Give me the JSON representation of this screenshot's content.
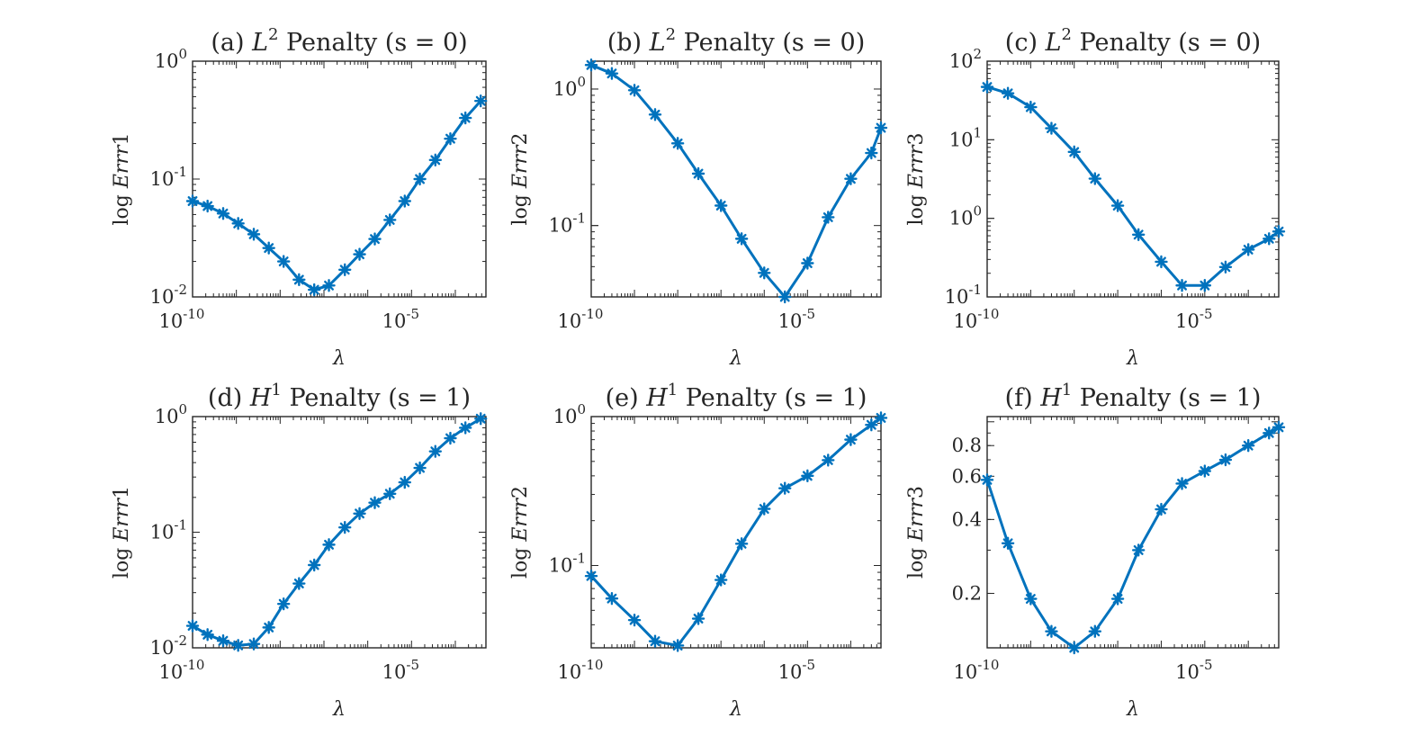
{
  "colors": {
    "series": "#0072BD",
    "axes": "#262626",
    "background": "#ffffff"
  },
  "chart_data": [
    {
      "type": "line",
      "marker": "asterisk",
      "yscale": "log",
      "grid": false,
      "title_prefix": "(a)",
      "title_sym": "L",
      "title_sup": "2",
      "title_rest": "Penalty",
      "title_param": "(s = 0)",
      "xlabel": "λ",
      "ylabel_prefix": "log",
      "ylabel_var": "Err",
      "ylabel_idx": "1",
      "xlim": [
        1e-10,
        0.0005
      ],
      "ylim": [
        0.01,
        1
      ],
      "xticks": [
        {
          "value": 1e-10,
          "label": "10",
          "sup": "-10"
        },
        {
          "value": 1e-05,
          "label": "10",
          "sup": "-5"
        }
      ],
      "yticks": [
        {
          "value": 0.01,
          "label": "10",
          "sup": "-2"
        },
        {
          "value": 0.1,
          "label": "10",
          "sup": "-1"
        },
        {
          "value": 1,
          "label": "10",
          "sup": "0"
        }
      ],
      "x": [
        1e-10,
        2.2e-10,
        5e-10,
        1.1e-09,
        2.5e-09,
        5.5e-09,
        1.2e-08,
        2.7e-08,
        6e-08,
        1.3e-07,
        3e-07,
        6.5e-07,
        1.45e-06,
        3.2e-06,
        7e-06,
        1.55e-05,
        3.5e-05,
        7.7e-05,
        0.00017,
        0.00038
      ],
      "y": [
        0.065,
        0.059,
        0.051,
        0.042,
        0.034,
        0.026,
        0.02,
        0.014,
        0.0115,
        0.0125,
        0.017,
        0.023,
        0.031,
        0.045,
        0.065,
        0.1,
        0.145,
        0.22,
        0.33,
        0.46
      ]
    },
    {
      "type": "line",
      "marker": "asterisk",
      "yscale": "log",
      "grid": false,
      "title_prefix": "(b)",
      "title_sym": "L",
      "title_sup": "2",
      "title_rest": "Penalty",
      "title_param": "(s = 0)",
      "xlabel": "λ",
      "ylabel_prefix": "log",
      "ylabel_var": "Err",
      "ylabel_idx": "2",
      "xlim": [
        1e-10,
        0.0005
      ],
      "ylim": [
        0.03,
        1.6
      ],
      "xticks": [
        {
          "value": 1e-10,
          "label": "10",
          "sup": "-10"
        },
        {
          "value": 1e-05,
          "label": "10",
          "sup": "-5"
        }
      ],
      "yticks": [
        {
          "value": 0.1,
          "label": "10",
          "sup": "-1"
        },
        {
          "value": 1,
          "label": "10",
          "sup": "0"
        }
      ],
      "x": [
        1e-10,
        3e-10,
        1e-09,
        3e-09,
        1e-08,
        3e-08,
        1e-07,
        3e-07,
        1e-06,
        3e-06,
        1e-05,
        3e-05,
        0.0001,
        0.0003,
        0.0005
      ],
      "y": [
        1.5,
        1.3,
        0.98,
        0.65,
        0.4,
        0.24,
        0.14,
        0.08,
        0.045,
        0.03,
        0.053,
        0.115,
        0.22,
        0.34,
        0.52
      ]
    },
    {
      "type": "line",
      "marker": "asterisk",
      "yscale": "log",
      "grid": false,
      "title_prefix": "(c)",
      "title_sym": "L",
      "title_sup": "2",
      "title_rest": "Penalty",
      "title_param": "(s = 0)",
      "xlabel": "λ",
      "ylabel_prefix": "log",
      "ylabel_var": "Err",
      "ylabel_idx": "3",
      "xlim": [
        1e-10,
        0.0005
      ],
      "ylim": [
        0.1,
        100
      ],
      "xticks": [
        {
          "value": 1e-10,
          "label": "10",
          "sup": "-10"
        },
        {
          "value": 1e-05,
          "label": "10",
          "sup": "-5"
        }
      ],
      "yticks": [
        {
          "value": 0.1,
          "label": "10",
          "sup": "-1"
        },
        {
          "value": 1,
          "label": "10",
          "sup": "0"
        },
        {
          "value": 10,
          "label": "10",
          "sup": "1"
        },
        {
          "value": 100,
          "label": "10",
          "sup": "2"
        }
      ],
      "x": [
        1e-10,
        3e-10,
        1e-09,
        3e-09,
        1e-08,
        3e-08,
        1e-07,
        3e-07,
        1e-06,
        3e-06,
        1e-05,
        3e-05,
        0.0001,
        0.0003,
        0.0005
      ],
      "y": [
        47,
        39,
        26,
        14,
        7,
        3.2,
        1.45,
        0.62,
        0.28,
        0.14,
        0.14,
        0.24,
        0.4,
        0.55,
        0.68
      ]
    },
    {
      "type": "line",
      "marker": "asterisk",
      "yscale": "log",
      "grid": false,
      "title_prefix": "(d)",
      "title_sym": "H",
      "title_sup": "1",
      "title_rest": "Penalty",
      "title_param": "(s = 1)",
      "xlabel": "λ",
      "ylabel_prefix": "log",
      "ylabel_var": "Err",
      "ylabel_idx": "1",
      "xlim": [
        1e-10,
        0.0005
      ],
      "ylim": [
        0.01,
        1
      ],
      "xticks": [
        {
          "value": 1e-10,
          "label": "10",
          "sup": "-10"
        },
        {
          "value": 1e-05,
          "label": "10",
          "sup": "-5"
        }
      ],
      "yticks": [
        {
          "value": 0.01,
          "label": "10",
          "sup": "-2"
        },
        {
          "value": 0.1,
          "label": "10",
          "sup": "-1"
        },
        {
          "value": 1,
          "label": "10",
          "sup": "0"
        }
      ],
      "x": [
        1e-10,
        2.2e-10,
        5e-10,
        1.1e-09,
        2.5e-09,
        5.5e-09,
        1.2e-08,
        2.7e-08,
        6e-08,
        1.3e-07,
        3e-07,
        6.5e-07,
        1.45e-06,
        3.2e-06,
        7e-06,
        1.55e-05,
        3.5e-05,
        7.7e-05,
        0.00017,
        0.00038
      ],
      "y": [
        0.0155,
        0.013,
        0.0115,
        0.0105,
        0.0108,
        0.015,
        0.024,
        0.036,
        0.052,
        0.078,
        0.11,
        0.145,
        0.18,
        0.215,
        0.27,
        0.36,
        0.5,
        0.65,
        0.8,
        0.96
      ]
    },
    {
      "type": "line",
      "marker": "asterisk",
      "yscale": "log",
      "grid": false,
      "title_prefix": "(e)",
      "title_sym": "H",
      "title_sup": "1",
      "title_rest": "Penalty",
      "title_param": "(s = 1)",
      "xlabel": "λ",
      "ylabel_prefix": "log",
      "ylabel_var": "Err",
      "ylabel_idx": "2",
      "xlim": [
        1e-10,
        0.0005
      ],
      "ylim": [
        0.028,
        1
      ],
      "xticks": [
        {
          "value": 1e-10,
          "label": "10",
          "sup": "-10"
        },
        {
          "value": 1e-05,
          "label": "10",
          "sup": "-5"
        }
      ],
      "yticks": [
        {
          "value": 0.1,
          "label": "10",
          "sup": "-1"
        },
        {
          "value": 1,
          "label": "10",
          "sup": "0"
        }
      ],
      "x": [
        1e-10,
        3e-10,
        1e-09,
        3e-09,
        1e-08,
        3e-08,
        1e-07,
        3e-07,
        1e-06,
        3e-06,
        1e-05,
        3e-05,
        0.0001,
        0.0003,
        0.0005
      ],
      "y": [
        0.085,
        0.06,
        0.043,
        0.031,
        0.029,
        0.044,
        0.08,
        0.14,
        0.24,
        0.33,
        0.4,
        0.51,
        0.7,
        0.88,
        0.98
      ]
    },
    {
      "type": "line",
      "marker": "asterisk",
      "yscale": "log",
      "grid": false,
      "title_prefix": "(f)",
      "title_sym": "H",
      "title_sup": "1",
      "title_rest": "Penalty",
      "title_param": "(s = 1)",
      "xlabel": "λ",
      "ylabel_prefix": "log",
      "ylabel_var": "Err",
      "ylabel_idx": "3",
      "xlim": [
        1e-10,
        0.0005
      ],
      "ylim": [
        0.12,
        1.05
      ],
      "xticks": [
        {
          "value": 1e-10,
          "label": "10",
          "sup": "-10"
        },
        {
          "value": 1e-05,
          "label": "10",
          "sup": "-5"
        }
      ],
      "yticks": [
        {
          "value": 0.2,
          "label": "0.2"
        },
        {
          "value": 0.4,
          "label": "0.4"
        },
        {
          "value": 0.6,
          "label": "0.6"
        },
        {
          "value": 0.8,
          "label": "0.8"
        }
      ],
      "x": [
        1e-10,
        3e-10,
        1e-09,
        3e-09,
        1e-08,
        3e-08,
        1e-07,
        3e-07,
        1e-06,
        3e-06,
        1e-05,
        3e-05,
        0.0001,
        0.0003,
        0.0005
      ],
      "y": [
        0.58,
        0.32,
        0.19,
        0.14,
        0.12,
        0.14,
        0.19,
        0.3,
        0.44,
        0.56,
        0.63,
        0.7,
        0.8,
        0.9,
        0.95
      ]
    }
  ]
}
